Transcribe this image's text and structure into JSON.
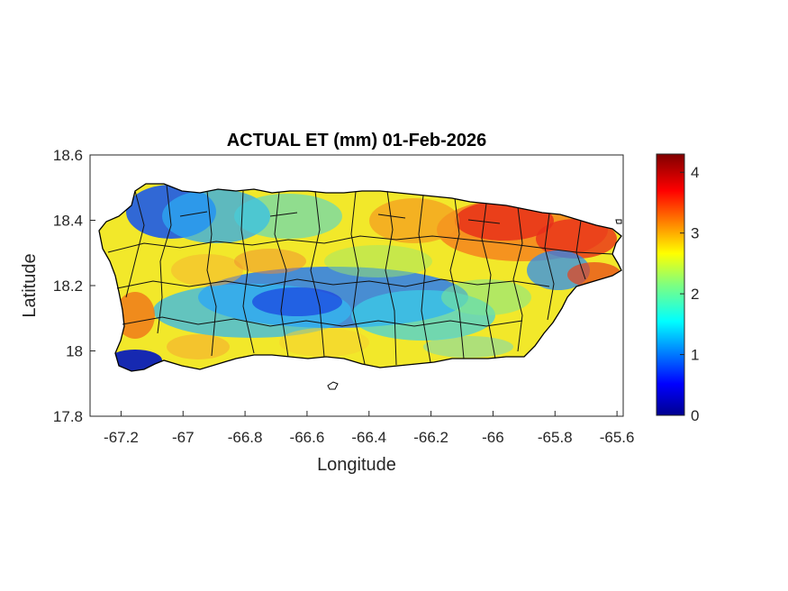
{
  "title": "ACTUAL ET (mm) 01-Feb-2026",
  "xlabel": "Longitude",
  "ylabel": "Latitude",
  "x_ticks": [
    "-67.2",
    "-67",
    "-66.8",
    "-66.6",
    "-66.4",
    "-66.2",
    "-66",
    "-65.8",
    "-65.6"
  ],
  "y_ticks": [
    "18.6",
    "18.4",
    "18.2",
    "18",
    "17.8"
  ],
  "colorbar_ticks": [
    "4",
    "3",
    "2",
    "1",
    "0"
  ],
  "chart_data": {
    "type": "heatmap",
    "title": "ACTUAL ET (mm) 01-Feb-2026",
    "xlabel": "Longitude",
    "ylabel": "Latitude",
    "xlim": [
      -67.3,
      -65.58
    ],
    "ylim": [
      17.8,
      18.6
    ],
    "colorbar": {
      "min": 0,
      "max": 4.3,
      "ticks": [
        0,
        1,
        2,
        3,
        4
      ],
      "colormap": "jet"
    },
    "regions": [
      {
        "name": "",
        "lon": [
          -67.15,
          -66.95
        ],
        "lat": [
          18.42,
          18.52
        ],
        "approx_value": 1.2
      },
      {
        "name": "",
        "lon": [
          -66.15,
          -65.6
        ],
        "lat": [
          18.3,
          18.48
        ],
        "approx_value": 3.9
      },
      {
        "name": "",
        "lon": [
          -66.7,
          -66.3
        ],
        "lat": [
          18.02,
          18.2
        ],
        "approx_value": 1.3
      },
      {
        "name": "",
        "lon": [
          -67.2,
          -67.1
        ],
        "lat": [
          17.93,
          17.98
        ],
        "approx_value": 0.3
      },
      {
        "name": "",
        "lon": [
          -67.2,
          -67.1
        ],
        "lat": [
          18.05,
          18.15
        ],
        "approx_value": 3.6
      },
      {
        "name": "",
        "lon": [
          -66.9,
          -66.6
        ],
        "lat": [
          18.25,
          18.35
        ],
        "approx_value": 3.1
      }
    ]
  },
  "colors": {
    "axis": "#262626",
    "boundary": "#000000"
  }
}
